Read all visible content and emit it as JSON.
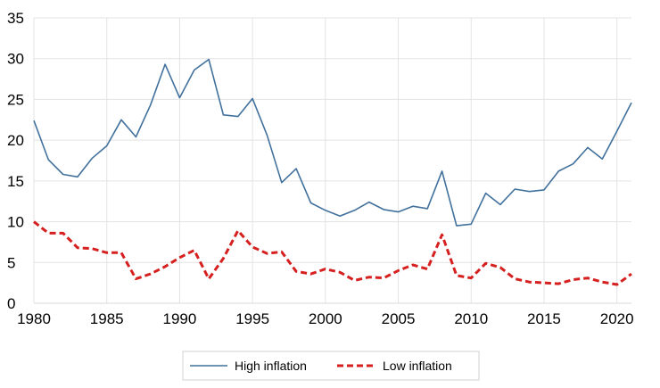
{
  "chart_data": {
    "type": "line",
    "title": "",
    "xlabel": "",
    "ylabel": "",
    "xlim": [
      1980,
      2021
    ],
    "ylim": [
      0,
      35
    ],
    "x_ticks": [
      1980,
      1985,
      1990,
      1995,
      2000,
      2005,
      2010,
      2015,
      2020
    ],
    "y_ticks": [
      0,
      5,
      10,
      15,
      20,
      25,
      30,
      35
    ],
    "grid": true,
    "legend_position": "bottom",
    "x": [
      1980,
      1981,
      1982,
      1983,
      1984,
      1985,
      1986,
      1987,
      1988,
      1989,
      1990,
      1991,
      1992,
      1993,
      1994,
      1995,
      1996,
      1997,
      1998,
      1999,
      2000,
      2001,
      2002,
      2003,
      2004,
      2005,
      2006,
      2007,
      2008,
      2009,
      2010,
      2011,
      2012,
      2013,
      2014,
      2015,
      2016,
      2017,
      2018,
      2019,
      2020,
      2021
    ],
    "series": [
      {
        "name": "High inflation",
        "color": "#41719C",
        "style": "solid",
        "values": [
          22.4,
          17.6,
          15.8,
          15.5,
          17.8,
          19.3,
          22.5,
          20.4,
          24.3,
          29.3,
          25.2,
          28.6,
          29.9,
          23.1,
          22.9,
          25.1,
          20.6,
          14.8,
          16.5,
          12.3,
          11.4,
          10.7,
          11.4,
          12.4,
          11.5,
          11.2,
          11.9,
          11.6,
          16.2,
          9.5,
          9.7,
          13.5,
          12.1,
          14.0,
          13.7,
          13.9,
          16.2,
          17.1,
          19.1,
          17.7,
          21.1,
          24.6
        ]
      },
      {
        "name": "Low inflation",
        "color": "#D62020",
        "style": "dashed",
        "values": [
          10.0,
          8.6,
          8.6,
          6.8,
          6.7,
          6.2,
          6.2,
          3.0,
          3.6,
          4.5,
          5.6,
          6.5,
          3.0,
          5.5,
          8.9,
          6.9,
          6.1,
          6.3,
          3.9,
          3.6,
          4.2,
          3.8,
          2.8,
          3.2,
          3.1,
          4.0,
          4.7,
          4.2,
          8.4,
          3.4,
          3.1,
          4.9,
          4.4,
          3.0,
          2.6,
          2.5,
          2.4,
          2.9,
          3.1,
          2.6,
          2.3,
          3.6
        ]
      }
    ]
  }
}
